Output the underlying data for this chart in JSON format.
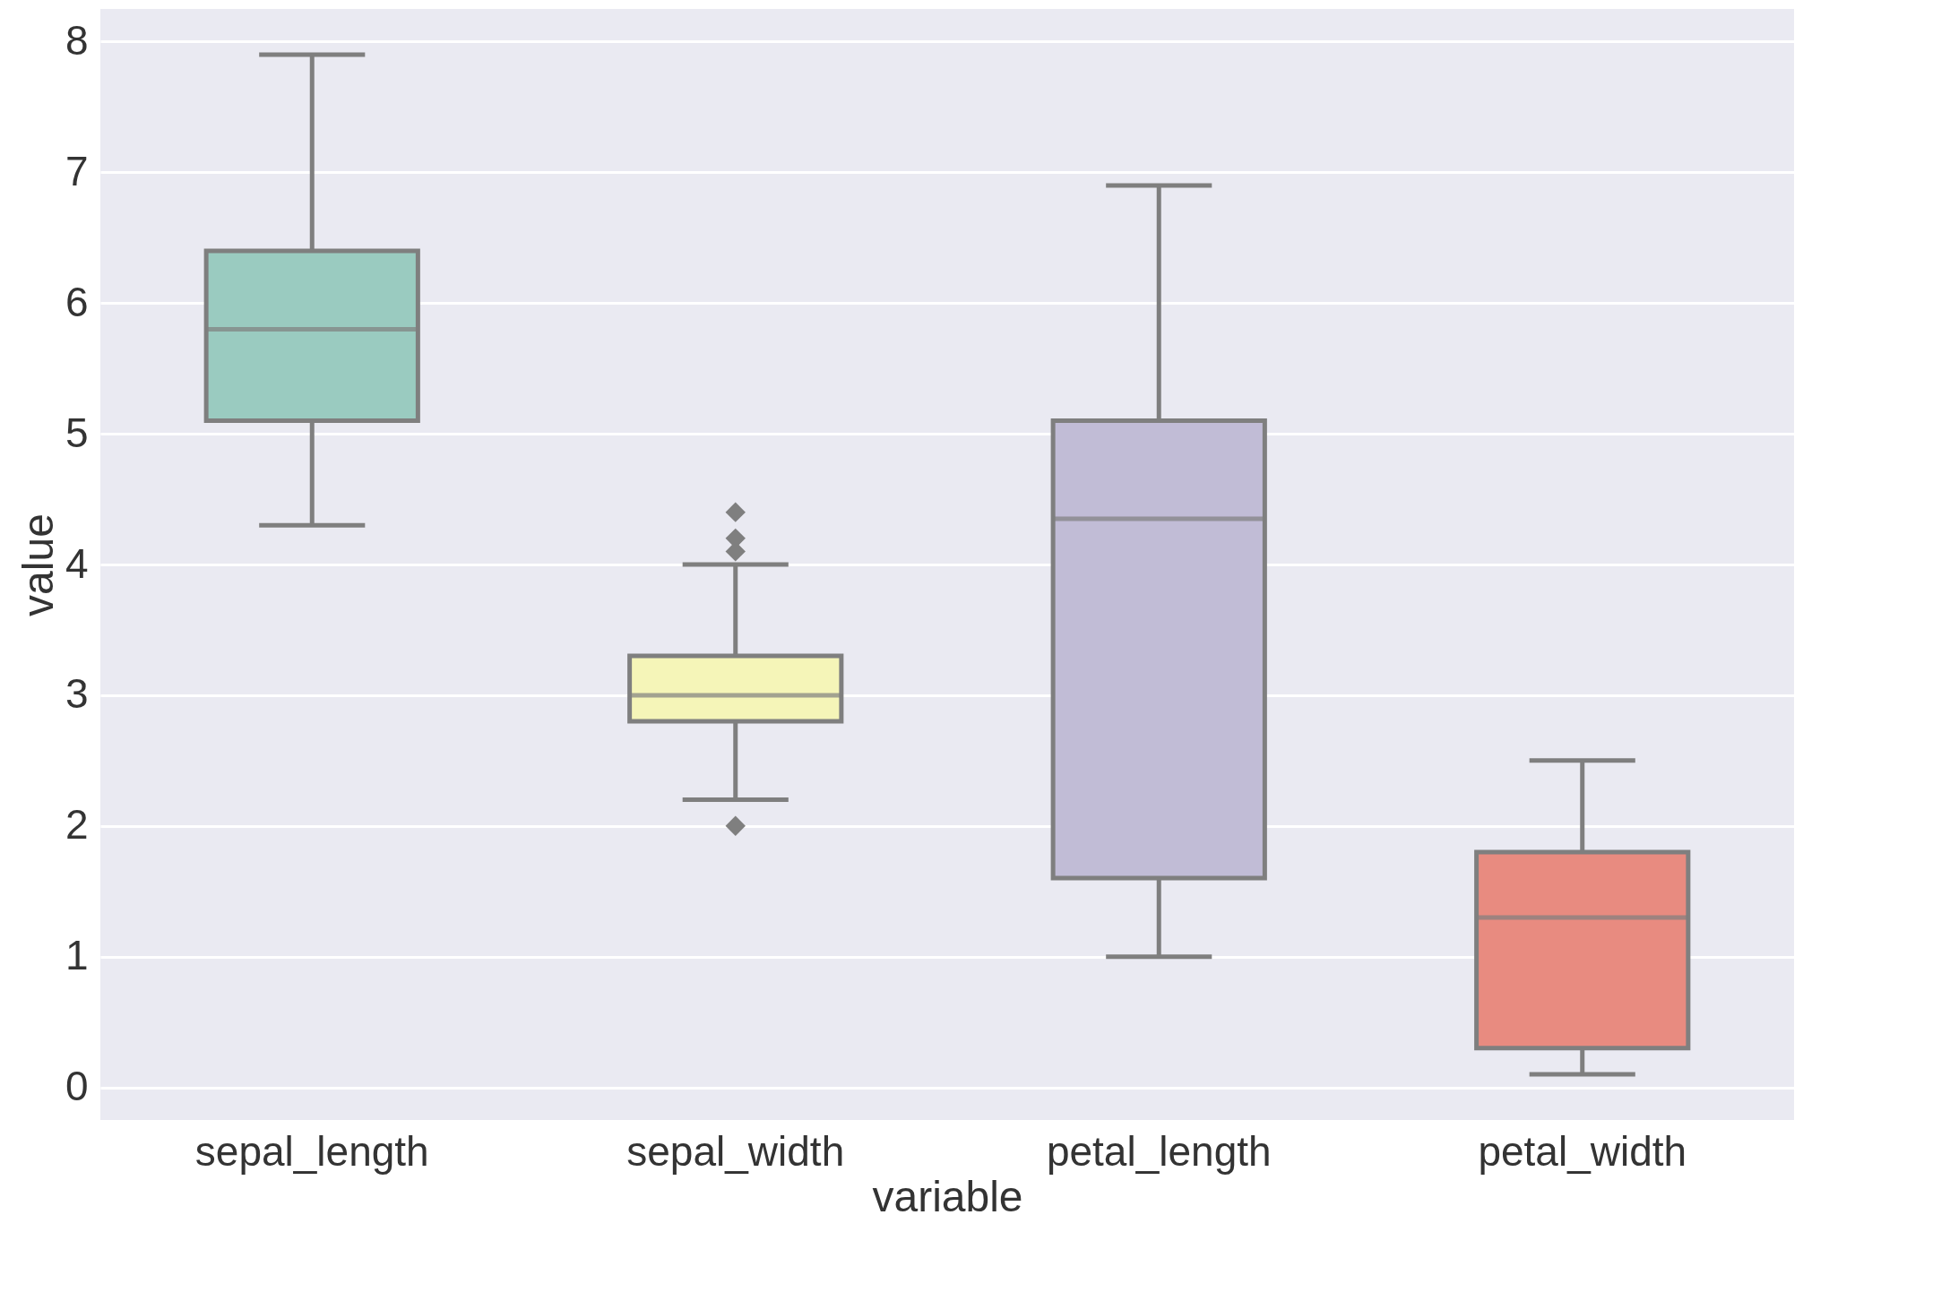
{
  "chart_data": {
    "type": "box",
    "xlabel": "variable",
    "ylabel": "value",
    "categories": [
      "sepal_length",
      "sepal_width",
      "petal_length",
      "petal_width"
    ],
    "boxes": [
      {
        "low": 4.3,
        "q1": 5.1,
        "median": 5.8,
        "q3": 6.4,
        "high": 7.9
      },
      {
        "low": 2.2,
        "q1": 2.8,
        "median": 3.0,
        "q3": 3.3,
        "high": 4.0,
        "outliers": [
          4.1,
          4.2,
          4.4,
          2.0
        ]
      },
      {
        "low": 1.0,
        "q1": 1.6,
        "median": 4.35,
        "q3": 5.1,
        "high": 6.9
      },
      {
        "low": 0.1,
        "q1": 0.3,
        "median": 1.3,
        "q3": 1.8,
        "high": 2.5
      }
    ],
    "colors": [
      "#9acbc0",
      "#f5f5b8",
      "#c1bcd6",
      "#e88b80"
    ],
    "ylim": [
      -0.25,
      8.25
    ],
    "yticks": [
      0,
      1,
      2,
      3,
      4,
      5,
      6,
      7,
      8
    ],
    "grid": "y",
    "marker": "diamond"
  }
}
